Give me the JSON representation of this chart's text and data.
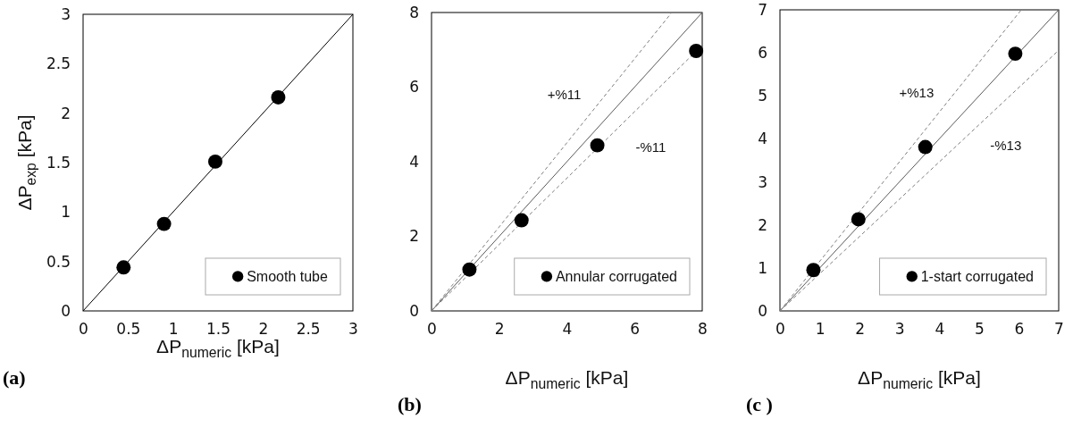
{
  "chart_data": [
    {
      "type": "line",
      "xlabel": "ΔP$_{numeric}$ [kPa]",
      "ylabel": "ΔP$_{exp}$ [kPa]",
      "xlim": [
        0,
        3
      ],
      "ylim": [
        0,
        3
      ],
      "xticks": [
        0,
        0.5,
        1,
        1.5,
        2,
        2.5,
        3
      ],
      "yticks": [
        0,
        0.5,
        1,
        1.5,
        2,
        2.5,
        3
      ],
      "legend": "bottom right",
      "annotations": [
        "(a)"
      ],
      "series": [
        {
          "x": [
            0,
            3
          ],
          "values": [
            0,
            3
          ],
          "color": "#000000",
          "line_style": "solid"
        },
        {
          "type": "scatter",
          "marker": "circle",
          "name": "Smooth tube",
          "color": "#000000",
          "x": [
            0.45,
            0.9,
            1.47,
            2.17
          ],
          "values": [
            0.44,
            0.88,
            1.51,
            2.16
          ]
        }
      ]
    },
    {
      "type": "line",
      "xlabel": "ΔP$_{numeric}$ [kPa]",
      "xlim": [
        0,
        8
      ],
      "ylim": [
        0,
        8
      ],
      "xticks": [
        0,
        2,
        4,
        6,
        8
      ],
      "yticks": [
        0,
        2,
        4,
        6,
        8
      ],
      "legend": "bottom right",
      "annotations": [
        "+%11",
        "-%11",
        "(b)"
      ],
      "series": [
        {
          "x": [
            0,
            8
          ],
          "values": [
            0,
            8
          ],
          "color": "#595959",
          "line_style": "solid"
        },
        {
          "x": [
            0,
            7.1
          ],
          "values": [
            0,
            8
          ],
          "color": "#7f7f7f",
          "line_style": "dashed"
        },
        {
          "x": [
            0,
            8
          ],
          "values": [
            0,
            7.12
          ],
          "color": "#7f7f7f",
          "line_style": "dashed"
        },
        {
          "type": "scatter",
          "marker": "circle",
          "name": "Annular corrugated",
          "color": "#000000",
          "x": [
            1.12,
            2.66,
            4.9,
            7.82
          ],
          "values": [
            1.11,
            2.43,
            4.44,
            6.97
          ]
        }
      ]
    },
    {
      "type": "line",
      "xlabel": "ΔP$_{numeric}$ [kPa]",
      "xlim": [
        0,
        7
      ],
      "ylim": [
        0,
        7
      ],
      "xticks": [
        0,
        1,
        2,
        3,
        4,
        5,
        6,
        7
      ],
      "yticks": [
        0,
        1,
        2,
        3,
        4,
        5,
        6,
        7
      ],
      "legend": "bottom right",
      "annotations": [
        "+%13",
        "-%13",
        "(c )"
      ],
      "series": [
        {
          "x": [
            0,
            7
          ],
          "values": [
            0,
            7
          ],
          "color": "#595959",
          "line_style": "solid"
        },
        {
          "x": [
            0,
            6.06
          ],
          "values": [
            0,
            7
          ],
          "color": "#7f7f7f",
          "line_style": "dashed"
        },
        {
          "x": [
            0,
            7
          ],
          "values": [
            0,
            6.06
          ],
          "color": "#7f7f7f",
          "line_style": "dashed"
        },
        {
          "type": "scatter",
          "marker": "circle",
          "name": "1-start corrugated",
          "color": "#000000",
          "x": [
            0.84,
            1.97,
            3.65,
            5.91
          ],
          "values": [
            0.95,
            2.13,
            3.81,
            5.98
          ]
        }
      ]
    }
  ]
}
